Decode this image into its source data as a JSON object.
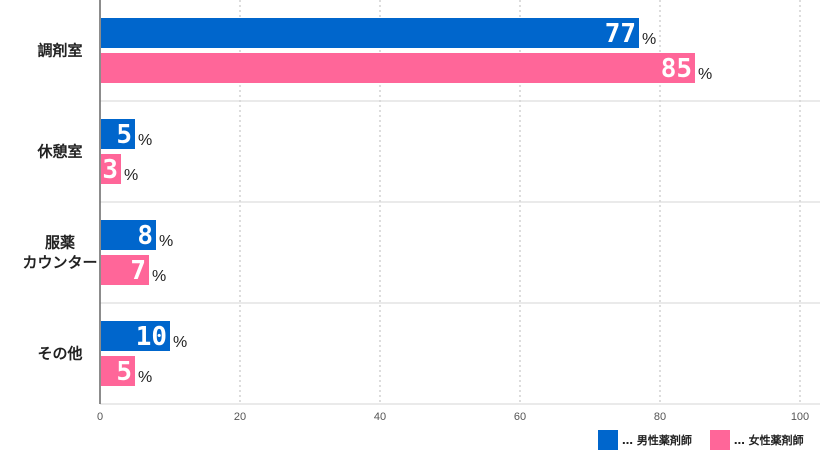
{
  "chart_data": {
    "type": "bar",
    "orientation": "horizontal",
    "categories": [
      "調剤室",
      "休憩室",
      "服薬\nカウンター",
      "その他"
    ],
    "series": [
      {
        "name": "男性薬剤師",
        "color": "#0066cc",
        "values": [
          77,
          5,
          8,
          10
        ]
      },
      {
        "name": "女性薬剤師",
        "color": "#ff6699",
        "values": [
          85,
          3,
          7,
          5
        ]
      }
    ],
    "value_suffix": "%",
    "xlim": [
      0,
      100
    ],
    "xticks": [
      0,
      20,
      40,
      60,
      80,
      100
    ],
    "grid": true,
    "legend_position": "bottom-right",
    "legend_prefix": "… "
  }
}
